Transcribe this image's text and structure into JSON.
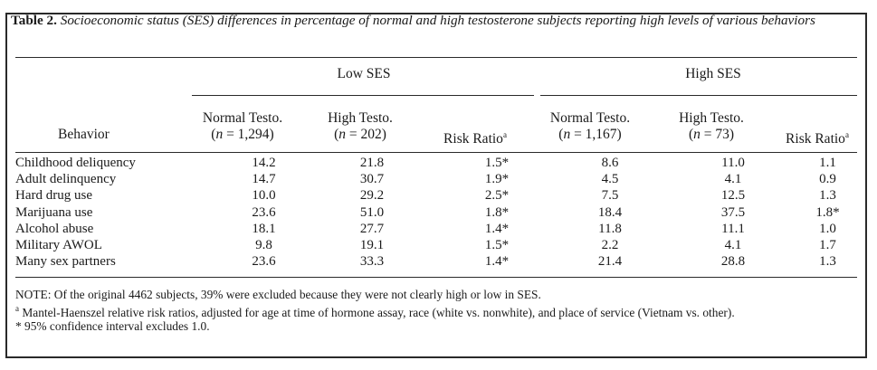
{
  "caption": {
    "label": "Table 2.",
    "text": "Socioeconomic status (SES) differences in percentage of normal and high testosterone subjects reporting high levels of various behaviors"
  },
  "groups": {
    "low": "Low SES",
    "high": "High SES"
  },
  "columns": {
    "behavior": "Behavior",
    "low_normal": {
      "name": "Normal Testo.",
      "n_pre": "(",
      "n_var": "n",
      "n_post": " = 1,294)"
    },
    "low_high": {
      "name": "High Testo.",
      "n_pre": "(",
      "n_var": "n",
      "n_post": " = 202)"
    },
    "low_rr": {
      "name": "Risk Ratio",
      "mark": "a"
    },
    "high_normal": {
      "name": "Normal Testo.",
      "n_pre": "(",
      "n_var": "n",
      "n_post": " = 1,167)"
    },
    "high_high": {
      "name": "High Testo.",
      "n_pre": "(",
      "n_var": "n",
      "n_post": " = 73)"
    },
    "high_rr": {
      "name": "Risk Ratio",
      "mark": "a"
    }
  },
  "rows": [
    {
      "behavior": "Childhood deliquency",
      "low_normal": "14.2",
      "low_high": "21.8",
      "low_rr": "1.5*",
      "high_normal": "8.6",
      "high_high": "11.0",
      "high_rr": "1.1"
    },
    {
      "behavior": "Adult delinquency",
      "low_normal": "14.7",
      "low_high": "30.7",
      "low_rr": "1.9*",
      "high_normal": "4.5",
      "high_high": "4.1",
      "high_rr": "0.9"
    },
    {
      "behavior": "Hard drug use",
      "low_normal": "10.0",
      "low_high": "29.2",
      "low_rr": "2.5*",
      "high_normal": "7.5",
      "high_high": "12.5",
      "high_rr": "1.3"
    },
    {
      "behavior": "Marijuana use",
      "low_normal": "23.6",
      "low_high": "51.0",
      "low_rr": "1.8*",
      "high_normal": "18.4",
      "high_high": "37.5",
      "high_rr": "1.8*"
    },
    {
      "behavior": "Alcohol abuse",
      "low_normal": "18.1",
      "low_high": "27.7",
      "low_rr": "1.4*",
      "high_normal": "11.8",
      "high_high": "11.1",
      "high_rr": "1.0"
    },
    {
      "behavior": "Military AWOL",
      "low_normal": "9.8",
      "low_high": "19.1",
      "low_rr": "1.5*",
      "high_normal": "2.2",
      "high_high": "4.1",
      "high_rr": "1.7"
    },
    {
      "behavior": "Many sex partners",
      "low_normal": "23.6",
      "low_high": "33.3",
      "low_rr": "1.4*",
      "high_normal": "21.4",
      "high_high": "28.8",
      "high_rr": "1.3"
    }
  ],
  "notes": {
    "note": "NOTE: Of the original 4462 subjects, 39% were excluded because they were not clearly high or low in SES.",
    "footnote_a_mark": "a",
    "footnote_a": " Mantel-Haenszel relative risk ratios, adjusted for age at time of hormone assay, race (white vs. nonwhite), and place of service (Vietnam vs. other).",
    "footnote_star": "* 95% confidence interval excludes 1.0."
  }
}
